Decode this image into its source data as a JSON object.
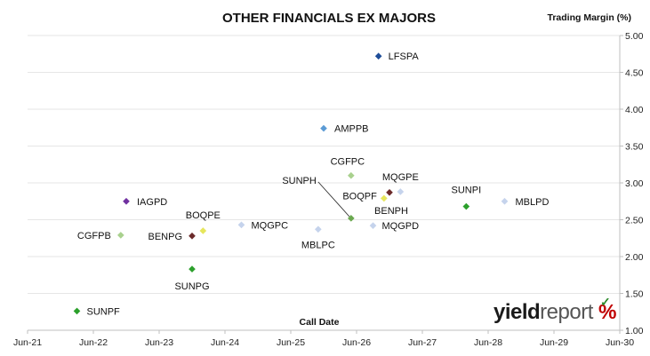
{
  "chart_data": {
    "type": "scatter",
    "title": "OTHER FINANCIALS EX MAJORS",
    "xlabel": "Call Date",
    "ylabel": "Trading Margin (%)",
    "x_ticks": [
      "Jun-21",
      "Jun-22",
      "Jun-23",
      "Jun-24",
      "Jun-25",
      "Jun-26",
      "Jun-27",
      "Jun-28",
      "Jun-29",
      "Jun-30"
    ],
    "y_ticks": [
      "1.00",
      "1.50",
      "2.00",
      "2.50",
      "3.00",
      "3.50",
      "4.00",
      "4.50",
      "5.00"
    ],
    "xlim": [
      "2021-06",
      "2030-06"
    ],
    "ylim": [
      1.0,
      5.0
    ],
    "y_axis_side": "right",
    "grid": "horizontal",
    "points": [
      {
        "name": "LFSPA",
        "x": "2026-10",
        "y": 4.72,
        "color": "#1f4e99"
      },
      {
        "name": "AMPPB",
        "x": "2025-12",
        "y": 3.74,
        "color": "#5b9bd5"
      },
      {
        "name": "CGFPC",
        "x": "2026-05",
        "y": 3.1,
        "color": "#a9d18e"
      },
      {
        "name": "MQGPE",
        "x": "2027-02",
        "y": 2.88,
        "color": "#c5d3ec"
      },
      {
        "name": "BENPH",
        "x": "2026-12",
        "y": 2.87,
        "color": "#6b2a2a"
      },
      {
        "name": "BOQPF",
        "x": "2026-11",
        "y": 2.79,
        "color": "#e6e65c"
      },
      {
        "name": "SUNPI",
        "x": "2028-02",
        "y": 2.68,
        "color": "#2ca02c"
      },
      {
        "name": "MBLPD",
        "x": "2028-09",
        "y": 2.75,
        "color": "#c5d3ec"
      },
      {
        "name": "IAGPD",
        "x": "2022-12",
        "y": 2.75,
        "color": "#7030a0"
      },
      {
        "name": "SUNPH",
        "x": "2026-05",
        "y": 2.52,
        "color": "#6aa84f"
      },
      {
        "name": "MQGPD",
        "x": "2026-09",
        "y": 2.42,
        "color": "#c5d3ec"
      },
      {
        "name": "MBLPC",
        "x": "2025-11",
        "y": 2.37,
        "color": "#c5d3ec"
      },
      {
        "name": "MQGPC",
        "x": "2024-09",
        "y": 2.43,
        "color": "#c5d3ec"
      },
      {
        "name": "BOQPE",
        "x": "2024-02",
        "y": 2.35,
        "color": "#e6e65c"
      },
      {
        "name": "BENPG",
        "x": "2024-00",
        "y": 2.28,
        "color": "#6b2a2a"
      },
      {
        "name": "CGFPB",
        "x": "2022-11",
        "y": 2.29,
        "color": "#a9d18e"
      },
      {
        "name": "SUNPG",
        "x": "2024-00",
        "y": 1.83,
        "color": "#2ca02c"
      },
      {
        "name": "SUNPF",
        "x": "2022-03",
        "y": 1.26,
        "color": "#2ca02c"
      }
    ]
  },
  "branding": {
    "part1": "yield",
    "part2": "report",
    "symbol": "%",
    "tick_symbol": "✓",
    "accent_red": "#c00000",
    "accent_green": "#2e8b2e"
  }
}
